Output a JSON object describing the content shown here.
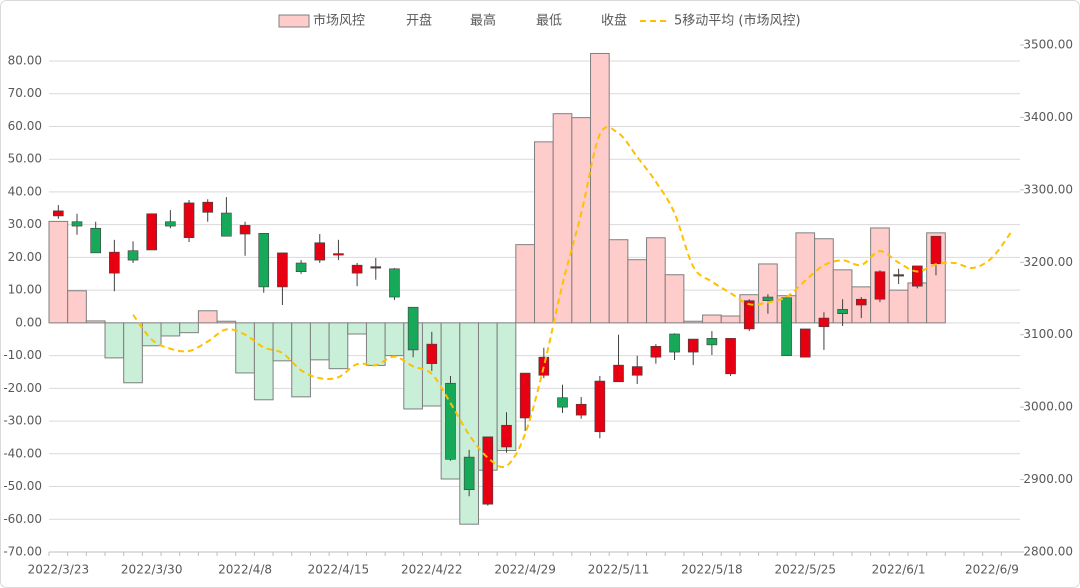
{
  "chart_data": {
    "type": "combo",
    "categories": [
      "2022/3/23",
      null,
      null,
      null,
      null,
      "2022/3/30",
      null,
      null,
      null,
      null,
      "2022/4/8",
      null,
      null,
      null,
      null,
      "2022/4/15",
      null,
      null,
      null,
      null,
      "2022/4/22",
      null,
      null,
      null,
      null,
      "2022/4/29",
      null,
      null,
      null,
      null,
      "2022/5/11",
      null,
      null,
      null,
      null,
      "2022/5/18",
      null,
      null,
      null,
      null,
      "2022/5/25",
      null,
      null,
      null,
      null,
      "2022/6/1",
      null,
      null,
      null,
      null,
      "2022/6/9",
      null
    ],
    "ylim": [
      -70,
      80
    ],
    "yticks": [
      {
        "value": -70,
        "label": "-70.00"
      },
      {
        "value": -60,
        "label": "-60.00"
      },
      {
        "value": -50,
        "label": "-50.00"
      },
      {
        "value": -40,
        "label": "-40.00"
      },
      {
        "value": -30,
        "label": "-30.00"
      },
      {
        "value": -20,
        "label": "-20.00"
      },
      {
        "value": -10,
        "label": "-10.00"
      },
      {
        "value": 0,
        "label": "0.00"
      },
      {
        "value": 10,
        "label": "10.00"
      },
      {
        "value": 20,
        "label": "20.00"
      },
      {
        "value": 30,
        "label": "30.00"
      },
      {
        "value": 40,
        "label": "40.00"
      },
      {
        "value": 50,
        "label": "50.00"
      },
      {
        "value": 60,
        "label": "60.00"
      },
      {
        "value": 70,
        "label": "70.00"
      },
      {
        "value": 80,
        "label": "80.00"
      }
    ],
    "y2lim": [
      2800,
      3500
    ],
    "y2ticks": [
      {
        "value": 2800,
        "label": "2800.00"
      },
      {
        "value": 2900,
        "label": "2900.00"
      },
      {
        "value": 3000,
        "label": "3000.00"
      },
      {
        "value": 3100,
        "label": "3100.00"
      },
      {
        "value": 3200,
        "label": "3200.00"
      },
      {
        "value": 3300,
        "label": "3300.00"
      },
      {
        "value": 3400,
        "label": "3400.00"
      },
      {
        "value": 3500,
        "label": "3500.00"
      }
    ],
    "grid": true,
    "up_color": "#e60012",
    "down_color": "#17a85a",
    "series": [
      {
        "name": "市场风控",
        "type": "bar",
        "color": "#ffcccc",
        "negative_color": "#c9efd9",
        "values": [
          31,
          9.8,
          0.6,
          -10.7,
          -18.3,
          -7,
          -4,
          -3,
          3.7,
          0.5,
          -15.3,
          -23.5,
          -11.6,
          -22.6,
          -11.3,
          -14,
          -3.4,
          -13,
          -10,
          -26.3,
          -25.4,
          -47.7,
          -61.5,
          -45,
          -39,
          23.9,
          55.3,
          63.9,
          62.7,
          82.3,
          25.4,
          19.3,
          26,
          14.7,
          0.5,
          2.4,
          2.1,
          8.6,
          18,
          8.3,
          27.5,
          25.7,
          16.2,
          11,
          29,
          10,
          12.2,
          27.5,
          null,
          null,
          null,
          null
        ]
      },
      {
        "name": "开盘",
        "type": "open",
        "axis": "y2",
        "values": [
          3264,
          3256,
          3247,
          3185,
          3216,
          3217,
          3256,
          3234,
          3269,
          3268,
          3239,
          3240,
          3166,
          3199,
          3203,
          3211,
          3185,
          3193,
          3191,
          3138,
          3060,
          3033,
          2931,
          2866,
          2945,
          2985,
          3044,
          3013,
          2989,
          2966,
          3035,
          3044,
          3069,
          3101,
          3076,
          3095,
          3046,
          3108,
          3152,
          3151,
          3069,
          3111,
          3135,
          3141,
          3149,
          3182,
          3167,
          3198,
          null,
          null,
          null,
          null
        ]
      },
      {
        "name": "最高",
        "type": "high",
        "axis": "y2",
        "values": [
          3279,
          3267,
          3256,
          3231,
          3229,
          3267,
          3272,
          3286,
          3287,
          3290,
          3256,
          3240,
          3213,
          3203,
          3239,
          3231,
          3199,
          3206,
          3192,
          3138,
          3104,
          3043,
          2941,
          2959,
          2993,
          3047,
          3082,
          3031,
          3014,
          3043,
          3100,
          3071,
          3087,
          3102,
          3094,
          3105,
          3095,
          3149,
          3156,
          3153,
          3108,
          3131,
          3149,
          3152,
          3189,
          3191,
          3195,
          3236,
          null,
          null,
          null,
          null
        ]
      },
      {
        "name": "最低",
        "type": "low",
        "axis": "y2",
        "values": [
          3260,
          3238,
          3213,
          3160,
          3199,
          3217,
          3247,
          3228,
          3256,
          3236,
          3209,
          3158,
          3141,
          3184,
          3199,
          3203,
          3167,
          3176,
          3148,
          3069,
          3050,
          2926,
          2877,
          2864,
          2937,
          2967,
          3040,
          2992,
          2984,
          2957,
          3035,
          3032,
          3060,
          3065,
          3058,
          3072,
          3043,
          3105,
          3129,
          3071,
          3069,
          3079,
          3112,
          3123,
          3145,
          3170,
          3164,
          3182,
          null,
          null,
          null,
          null
        ]
      },
      {
        "name": "收盘",
        "type": "close",
        "axis": "y2",
        "values": [
          3271,
          3250,
          3213,
          3214,
          3203,
          3267,
          3250,
          3282,
          3283,
          3236,
          3251,
          3166,
          3213,
          3187,
          3227,
          3212,
          3196,
          3194,
          3152,
          3079,
          3087,
          2928,
          2886,
          2959,
          2975,
          3047,
          3069,
          3000,
          3004,
          3036,
          3058,
          3056,
          3084,
          3076,
          3094,
          3086,
          3095,
          3147,
          3147,
          3071,
          3108,
          3123,
          3129,
          3149,
          3187,
          3183,
          3195,
          3236,
          null,
          null,
          null,
          null
        ]
      },
      {
        "name": "5移动平均 (市场风控)",
        "type": "line",
        "color": "#ffc000",
        "dashed": true,
        "values": [
          null,
          null,
          null,
          null,
          2.5,
          -5.1,
          -7.9,
          -8.6,
          -5.7,
          -2,
          -3.6,
          -7.5,
          -9.2,
          -14.5,
          -16.9,
          -16.6,
          -12.6,
          -12.9,
          -10.3,
          -13.3,
          -15.6,
          -24.5,
          -34.2,
          -41.2,
          -43.7,
          -33.9,
          -13.3,
          11.8,
          33.4,
          57.6,
          57.9,
          50.7,
          43.1,
          33.5,
          17.2,
          12.6,
          9.1,
          5.7,
          6.3,
          7.9,
          12.9,
          17.6,
          19.1,
          17.7,
          21.9,
          18.4,
          15.7,
          17.9,
          18.3,
          16.8,
          19.9,
          27.5
        ]
      }
    ]
  }
}
